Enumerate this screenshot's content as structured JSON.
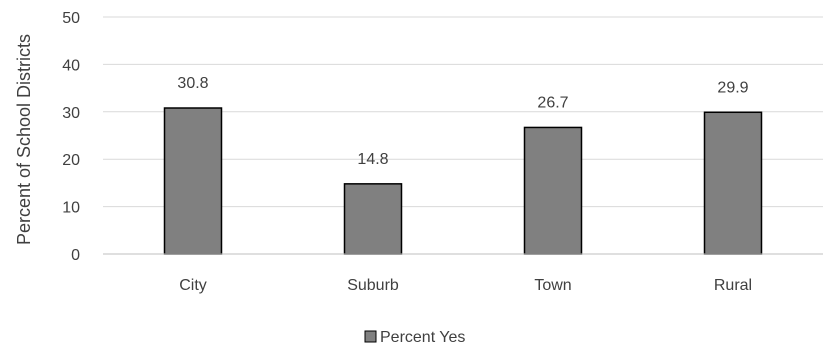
{
  "chart_data": {
    "type": "bar",
    "title": "",
    "xlabel": "",
    "ylabel": "Percent of School Districts",
    "categories": [
      "City",
      "Suburb",
      "Town",
      "Rural"
    ],
    "series": [
      {
        "name": "Percent Yes",
        "values": [
          30.8,
          14.8,
          26.7,
          29.9
        ],
        "color": "#808080"
      }
    ],
    "ylim": [
      0,
      50
    ],
    "yticks": [
      0,
      10,
      20,
      30,
      40,
      50
    ],
    "data_labels": [
      "30.8",
      "14.8",
      "26.7",
      "29.9"
    ],
    "grid": true,
    "legend_position": "bottom"
  }
}
